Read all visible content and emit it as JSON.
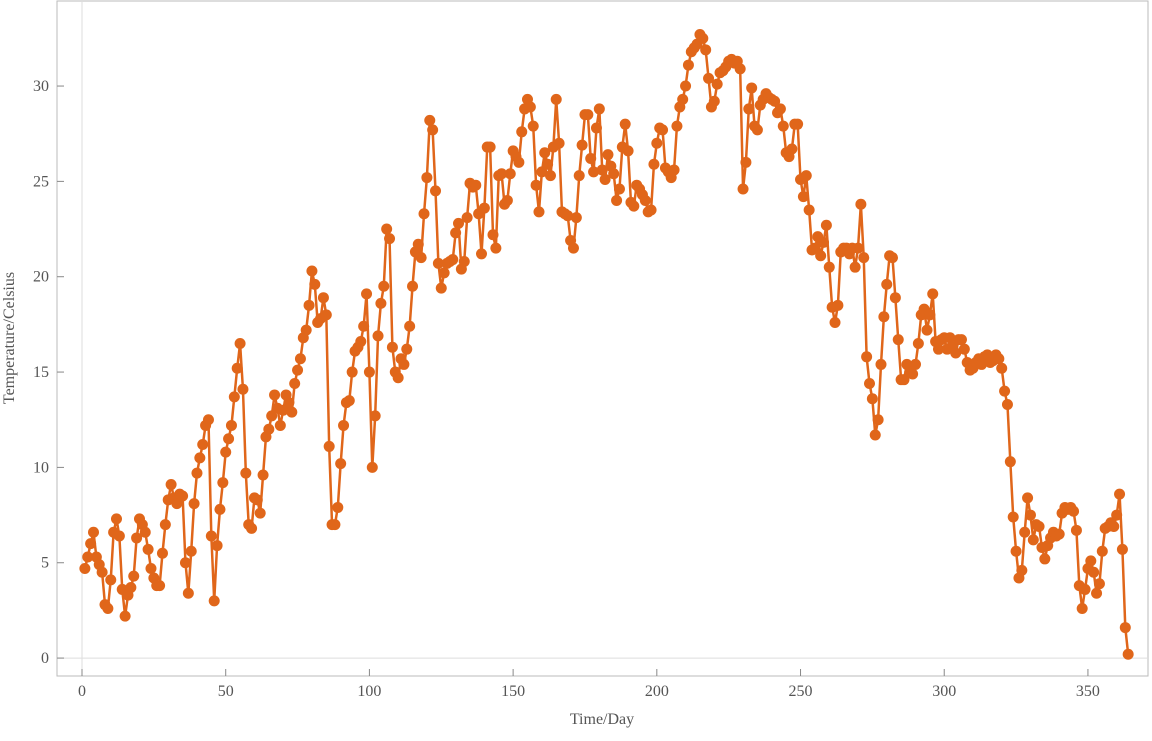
{
  "chart_data": {
    "type": "line",
    "x_label": "Time/Day",
    "y_label": "Temperature/Celsius",
    "color": "#e0661a",
    "xlim": [
      -8.7,
      370.9
    ],
    "ylim": [
      -0.94,
      34.46
    ],
    "xticks": [
      0,
      50,
      100,
      150,
      200,
      250,
      300,
      350
    ],
    "yticks": [
      0,
      5,
      10,
      15,
      20,
      25,
      30
    ],
    "x": [
      1,
      2,
      3,
      4,
      5,
      6,
      7,
      8,
      9,
      10,
      11,
      12,
      13,
      14,
      15,
      16,
      17,
      18,
      19,
      20,
      21,
      22,
      23,
      24,
      25,
      26,
      27,
      28,
      29,
      30,
      31,
      32,
      33,
      34,
      35,
      36,
      37,
      38,
      39,
      40,
      41,
      42,
      43,
      44,
      45,
      46,
      47,
      48,
      49,
      50,
      51,
      52,
      53,
      54,
      55,
      56,
      57,
      58,
      59,
      60,
      61,
      62,
      63,
      64,
      65,
      66,
      67,
      68,
      69,
      70,
      71,
      72,
      73,
      74,
      75,
      76,
      77,
      78,
      79,
      80,
      81,
      82,
      83,
      84,
      85,
      86,
      87,
      88,
      89,
      90,
      91,
      92,
      93,
      94,
      95,
      96,
      97,
      98,
      99,
      100,
      101,
      102,
      103,
      104,
      105,
      106,
      107,
      108,
      109,
      110,
      111,
      112,
      113,
      114,
      115,
      116,
      117,
      118,
      119,
      120,
      121,
      122,
      123,
      124,
      125,
      126,
      127,
      128,
      129,
      130,
      131,
      132,
      133,
      134,
      135,
      136,
      137,
      138,
      139,
      140,
      141,
      142,
      143,
      144,
      145,
      146,
      147,
      148,
      149,
      150,
      151,
      152,
      153,
      154,
      155,
      156,
      157,
      158,
      159,
      160,
      161,
      162,
      163,
      164,
      165,
      166,
      167,
      168,
      169,
      170,
      171,
      172,
      173,
      174,
      175,
      176,
      177,
      178,
      179,
      180,
      181,
      182,
      183,
      184,
      185,
      186,
      187,
      188,
      189,
      190,
      191,
      192,
      193,
      194,
      195,
      196,
      197,
      198,
      199,
      200,
      201,
      202,
      203,
      204,
      205,
      206,
      207,
      208,
      209,
      210,
      211,
      212,
      213,
      214,
      215,
      216,
      217,
      218,
      219,
      220,
      221,
      222,
      223,
      224,
      225,
      226,
      227,
      228,
      229,
      230,
      231,
      232,
      233,
      234,
      235,
      236,
      237,
      238,
      239,
      240,
      241,
      242,
      243,
      244,
      245,
      246,
      247,
      248,
      249,
      250,
      251,
      252,
      253,
      254,
      255,
      256,
      257,
      258,
      259,
      260,
      261,
      262,
      263,
      264,
      265,
      266,
      267,
      268,
      269,
      270,
      271,
      272,
      273,
      274,
      275,
      276,
      277,
      278,
      279,
      280,
      281,
      282,
      283,
      284,
      285,
      286,
      287,
      288,
      289,
      290,
      291,
      292,
      293,
      294,
      295,
      296,
      297,
      298,
      299,
      300,
      301,
      302,
      303,
      304,
      305,
      306,
      307,
      308,
      309,
      310,
      311,
      312,
      313,
      314,
      315,
      316,
      317,
      318,
      319,
      320,
      321,
      322,
      323,
      324,
      325,
      326,
      327,
      328,
      329,
      330,
      331,
      332,
      333,
      334,
      335,
      336,
      337,
      338,
      339,
      340,
      341,
      342,
      343,
      344,
      345,
      346,
      347,
      348,
      349,
      350,
      351,
      352,
      353,
      354,
      355,
      356,
      357,
      358,
      359,
      360,
      361,
      362,
      363,
      364
    ],
    "values": [
      4.7,
      5.3,
      6.0,
      6.6,
      5.3,
      4.9,
      4.5,
      2.8,
      2.6,
      4.1,
      6.6,
      7.3,
      6.4,
      3.6,
      2.2,
      3.3,
      3.7,
      4.3,
      6.3,
      7.3,
      7.0,
      6.6,
      5.7,
      4.7,
      4.2,
      3.8,
      3.8,
      5.5,
      7.0,
      8.3,
      9.1,
      8.4,
      8.1,
      8.6,
      8.5,
      5.0,
      3.4,
      5.6,
      8.1,
      9.7,
      10.5,
      11.2,
      12.2,
      12.5,
      6.4,
      3.0,
      5.9,
      7.8,
      9.2,
      10.8,
      11.5,
      12.2,
      13.7,
      15.2,
      16.5,
      14.1,
      9.7,
      7.0,
      6.8,
      8.4,
      8.3,
      7.6,
      9.6,
      11.6,
      12.0,
      12.7,
      13.8,
      13.1,
      12.2,
      13.0,
      13.8,
      13.4,
      12.9,
      14.4,
      15.1,
      15.7,
      16.8,
      17.2,
      18.5,
      20.3,
      19.6,
      17.6,
      17.8,
      18.9,
      18.0,
      11.1,
      7.0,
      7.0,
      7.9,
      10.2,
      12.2,
      13.4,
      13.5,
      15.0,
      16.1,
      16.3,
      16.6,
      17.4,
      19.1,
      15.0,
      10.0,
      12.7,
      16.9,
      18.6,
      19.5,
      22.5,
      22.0,
      16.3,
      15.0,
      14.7,
      15.7,
      15.4,
      16.2,
      17.4,
      19.5,
      21.3,
      21.7,
      21.0,
      23.3,
      25.2,
      28.2,
      27.7,
      24.5,
      20.7,
      19.4,
      20.2,
      20.7,
      20.8,
      20.9,
      22.3,
      22.8,
      20.4,
      20.8,
      23.1,
      24.9,
      24.7,
      24.8,
      23.3,
      21.2,
      23.6,
      26.8,
      26.8,
      22.2,
      21.5,
      25.3,
      25.4,
      23.8,
      24.0,
      25.4,
      26.6,
      26.3,
      26.0,
      27.6,
      28.8,
      29.3,
      28.9,
      27.9,
      24.8,
      23.4,
      25.5,
      26.5,
      25.9,
      25.3,
      26.8,
      29.3,
      27.0,
      23.4,
      23.3,
      23.2,
      21.9,
      21.5,
      23.1,
      25.3,
      26.9,
      28.5,
      28.5,
      26.2,
      25.5,
      27.8,
      28.8,
      25.6,
      25.1,
      26.4,
      25.8,
      25.4,
      24.0,
      24.6,
      26.8,
      28.0,
      26.6,
      23.9,
      23.7,
      24.8,
      24.6,
      24.3,
      24.0,
      23.4,
      23.5,
      25.9,
      27.0,
      27.8,
      27.7,
      25.7,
      25.5,
      25.2,
      25.6,
      27.9,
      28.9,
      29.3,
      30.0,
      31.1,
      31.8,
      32.0,
      32.2,
      32.7,
      32.5,
      31.9,
      30.4,
      28.9,
      29.2,
      30.1,
      30.7,
      30.8,
      31.0,
      31.3,
      31.4,
      31.2,
      31.3,
      30.9,
      24.6,
      26.0,
      28.8,
      29.9,
      27.9,
      27.7,
      29.0,
      29.3,
      29.6,
      29.4,
      29.3,
      29.2,
      28.6,
      28.8,
      27.9,
      26.5,
      26.3,
      26.7,
      28.0,
      28.0,
      25.1,
      24.2,
      25.3,
      23.5,
      21.4,
      21.5,
      22.1,
      21.1,
      21.8,
      22.7,
      20.5,
      18.4,
      17.6,
      18.5,
      21.3,
      21.5,
      21.5,
      21.2,
      21.5,
      20.5,
      21.5,
      23.8,
      21.0,
      15.8,
      14.4,
      13.6,
      11.7,
      12.5,
      15.4,
      17.9,
      19.6,
      21.1,
      21.0,
      18.9,
      16.7,
      14.6,
      14.6,
      15.4,
      15.0,
      14.9,
      15.4,
      16.5,
      18.0,
      18.3,
      17.2,
      18.0,
      19.1,
      16.6,
      16.2,
      16.7,
      16.8,
      16.2,
      16.8,
      16.3,
      16.0,
      16.7,
      16.7,
      16.2,
      15.5,
      15.1,
      15.2,
      15.5,
      15.7,
      15.4,
      15.8,
      15.9,
      15.5,
      15.6,
      15.9,
      15.7,
      15.2,
      14.0,
      13.3,
      10.3,
      7.4,
      5.6,
      4.2,
      4.6,
      6.6,
      8.4,
      7.5,
      6.2,
      7.0,
      6.9,
      5.8,
      5.2,
      5.9,
      6.3,
      6.6,
      6.4,
      6.5,
      7.6,
      7.9,
      7.8,
      7.9,
      7.7,
      6.7,
      3.8,
      2.6,
      3.6,
      4.7,
      5.1,
      4.5,
      3.4,
      3.9,
      5.6,
      6.8,
      6.9,
      7.1,
      6.9,
      7.5,
      8.6,
      5.7,
      1.6,
      0.2
    ]
  }
}
